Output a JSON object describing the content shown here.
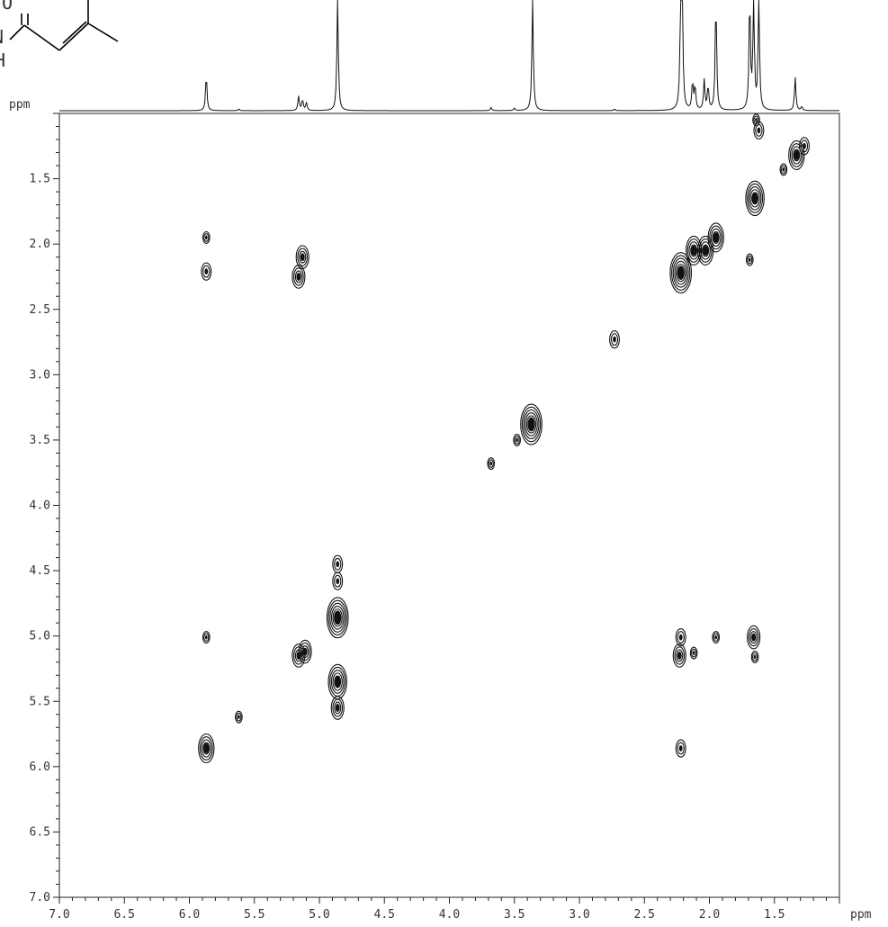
{
  "chart_data": {
    "type": "2D NMR COSY contour plot",
    "x_axis": {
      "label": "ppm",
      "range": [
        7.0,
        1.0
      ],
      "ticks": [
        7.0,
        6.5,
        6.0,
        5.5,
        5.0,
        4.5,
        4.0,
        3.5,
        3.0,
        2.5,
        2.0,
        1.5
      ],
      "tick_labels": [
        "7.0",
        "6.5",
        "6.0",
        "5.5",
        "5.0",
        "4.5",
        "4.0",
        "3.5",
        "3.0",
        "2.5",
        "2.0",
        "1.5"
      ]
    },
    "y_axis": {
      "label": "ppm",
      "range": [
        1.0,
        7.0
      ],
      "ticks": [
        1.5,
        2.0,
        2.5,
        3.0,
        3.5,
        4.0,
        4.5,
        5.0,
        5.5,
        6.0,
        6.5,
        7.0
      ],
      "tick_labels": [
        "1.5",
        "2.0",
        "2.5",
        "3.0",
        "3.5",
        "4.0",
        "4.5",
        "5.0",
        "5.5",
        "6.0",
        "6.5",
        "7.0"
      ]
    },
    "projection_1d": {
      "label": "ppm",
      "peaks": [
        {
          "ppm": 5.87,
          "height": 0.45
        },
        {
          "ppm": 5.62,
          "height": 0.02
        },
        {
          "ppm": 5.16,
          "height": 0.18
        },
        {
          "ppm": 5.13,
          "height": 0.14
        },
        {
          "ppm": 5.1,
          "height": 0.1
        },
        {
          "ppm": 4.86,
          "height": 1.4
        },
        {
          "ppm": 3.68,
          "height": 0.04
        },
        {
          "ppm": 3.5,
          "height": 0.03
        },
        {
          "ppm": 3.36,
          "height": 1.4
        },
        {
          "ppm": 2.73,
          "height": 0.02
        },
        {
          "ppm": 2.22,
          "height": 1.4
        },
        {
          "ppm": 2.21,
          "height": 1.4
        },
        {
          "ppm": 2.13,
          "height": 0.35
        },
        {
          "ppm": 2.11,
          "height": 0.3
        },
        {
          "ppm": 2.04,
          "height": 0.38
        },
        {
          "ppm": 2.01,
          "height": 0.3
        },
        {
          "ppm": 1.95,
          "height": 1.4
        },
        {
          "ppm": 1.69,
          "height": 1.4
        },
        {
          "ppm": 1.66,
          "height": 1.4
        },
        {
          "ppm": 1.62,
          "height": 1.4
        },
        {
          "ppm": 1.34,
          "height": 0.42
        },
        {
          "ppm": 1.29,
          "height": 0.05
        }
      ]
    },
    "cross_peaks": [
      {
        "x": 5.87,
        "y": 1.95,
        "size": 1
      },
      {
        "x": 5.87,
        "y": 2.21,
        "size": 2
      },
      {
        "x": 5.13,
        "y": 2.1,
        "size": 3
      },
      {
        "x": 5.16,
        "y": 2.25,
        "size": 3
      },
      {
        "x": 1.64,
        "y": 1.05,
        "size": 1
      },
      {
        "x": 1.62,
        "y": 1.13,
        "size": 2
      },
      {
        "x": 1.33,
        "y": 1.32,
        "size": 4
      },
      {
        "x": 1.27,
        "y": 1.25,
        "size": 2
      },
      {
        "x": 1.43,
        "y": 1.43,
        "size": 1
      },
      {
        "x": 1.65,
        "y": 1.65,
        "size": 5
      },
      {
        "x": 1.69,
        "y": 2.12,
        "size": 1
      },
      {
        "x": 1.95,
        "y": 1.95,
        "size": 4
      },
      {
        "x": 2.03,
        "y": 2.05,
        "size": 4
      },
      {
        "x": 2.12,
        "y": 2.05,
        "size": 4
      },
      {
        "x": 2.22,
        "y": 2.22,
        "size": 6
      },
      {
        "x": 2.73,
        "y": 2.73,
        "size": 2
      },
      {
        "x": 3.37,
        "y": 3.38,
        "size": 6
      },
      {
        "x": 3.48,
        "y": 3.5,
        "size": 1
      },
      {
        "x": 3.68,
        "y": 3.68,
        "size": 1
      },
      {
        "x": 4.86,
        "y": 4.86,
        "size": 6
      },
      {
        "x": 4.86,
        "y": 4.45,
        "size": 2
      },
      {
        "x": 4.86,
        "y": 4.58,
        "size": 2
      },
      {
        "x": 4.86,
        "y": 5.35,
        "size": 5
      },
      {
        "x": 4.86,
        "y": 5.55,
        "size": 3
      },
      {
        "x": 5.87,
        "y": 5.01,
        "size": 1
      },
      {
        "x": 5.16,
        "y": 5.15,
        "size": 3
      },
      {
        "x": 5.11,
        "y": 5.12,
        "size": 3
      },
      {
        "x": 5.62,
        "y": 5.62,
        "size": 1
      },
      {
        "x": 5.87,
        "y": 5.86,
        "size": 4
      },
      {
        "x": 2.22,
        "y": 5.01,
        "size": 2
      },
      {
        "x": 2.23,
        "y": 5.15,
        "size": 3
      },
      {
        "x": 2.12,
        "y": 5.13,
        "size": 1
      },
      {
        "x": 1.95,
        "y": 5.01,
        "size": 1
      },
      {
        "x": 1.66,
        "y": 5.01,
        "size": 3
      },
      {
        "x": 1.65,
        "y": 5.16,
        "size": 1
      },
      {
        "x": 2.22,
        "y": 5.86,
        "size": 2
      }
    ],
    "grid": false,
    "legend": "none"
  }
}
